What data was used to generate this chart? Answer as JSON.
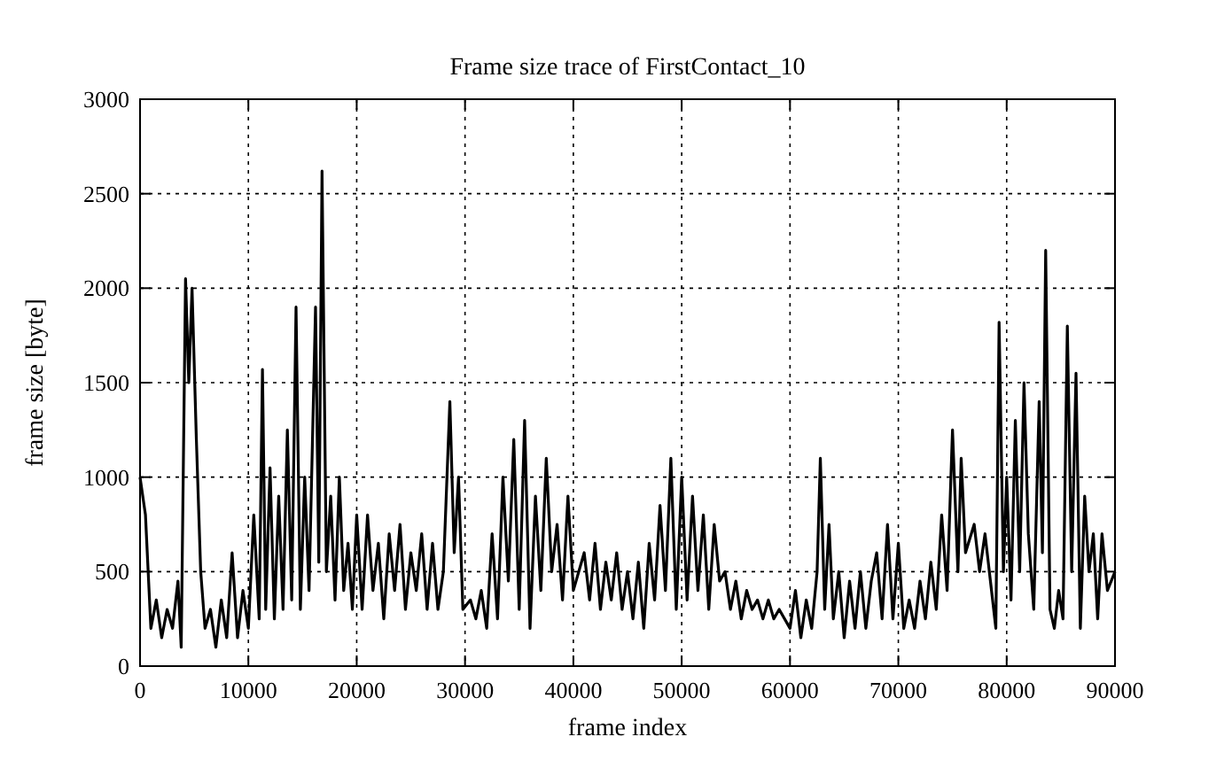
{
  "chart_data": {
    "type": "line",
    "title": "Frame size trace of FirstContact_10",
    "xlabel": "frame index",
    "ylabel": "frame size [byte]",
    "x": [
      0,
      500,
      1000,
      1500,
      2000,
      2500,
      3000,
      3500,
      3800,
      4200,
      4500,
      4800,
      5200,
      5600,
      6000,
      6500,
      7000,
      7500,
      8000,
      8500,
      9000,
      9500,
      10000,
      10500,
      11000,
      11300,
      11600,
      12000,
      12400,
      12800,
      13200,
      13600,
      14000,
      14400,
      14800,
      15200,
      15600,
      16200,
      16500,
      16800,
      17200,
      17600,
      18000,
      18400,
      18800,
      19200,
      19600,
      20000,
      20500,
      21000,
      21500,
      22000,
      22500,
      23000,
      23500,
      24000,
      24500,
      25000,
      25500,
      26000,
      26500,
      27000,
      27500,
      28000,
      28600,
      29000,
      29400,
      29800,
      30500,
      31000,
      31500,
      32000,
      32500,
      33000,
      33500,
      34000,
      34500,
      35000,
      35500,
      36000,
      36500,
      37000,
      37500,
      38000,
      38500,
      39000,
      39500,
      40000,
      41000,
      41500,
      42000,
      42500,
      43000,
      43500,
      44000,
      44500,
      45000,
      45500,
      46000,
      46500,
      47000,
      47500,
      48000,
      48500,
      49000,
      49500,
      50000,
      50500,
      51000,
      51500,
      52000,
      52500,
      53000,
      53500,
      54000,
      54500,
      55000,
      55500,
      56000,
      56500,
      57000,
      57500,
      58000,
      58500,
      59000,
      60000,
      60500,
      61000,
      61500,
      62000,
      62500,
      62800,
      63200,
      63600,
      64000,
      64500,
      65000,
      65500,
      66000,
      66500,
      67000,
      67500,
      68000,
      68500,
      69000,
      69500,
      70000,
      70500,
      71000,
      71500,
      72000,
      72500,
      73000,
      73500,
      74000,
      74500,
      75000,
      75500,
      75800,
      76200,
      77000,
      77500,
      78000,
      78500,
      79000,
      79300,
      79700,
      80000,
      80400,
      80800,
      81200,
      81600,
      82000,
      82500,
      83000,
      83300,
      83600,
      84000,
      84400,
      84800,
      85200,
      85600,
      86000,
      86400,
      86800,
      87200,
      87600,
      88000,
      88400,
      88800,
      89300,
      90000
    ],
    "series": [
      {
        "color": "#000000",
        "values": [
          1000,
          800,
          200,
          350,
          150,
          300,
          200,
          450,
          100,
          2050,
          1500,
          2000,
          1200,
          500,
          200,
          300,
          100,
          350,
          150,
          600,
          150,
          400,
          200,
          800,
          250,
          1570,
          300,
          1050,
          250,
          900,
          300,
          1250,
          350,
          1900,
          300,
          1000,
          400,
          1900,
          550,
          2620,
          500,
          900,
          350,
          1000,
          400,
          650,
          300,
          800,
          300,
          800,
          400,
          650,
          250,
          700,
          400,
          750,
          300,
          600,
          400,
          700,
          300,
          650,
          300,
          500,
          1400,
          600,
          1000,
          300,
          350,
          250,
          400,
          200,
          700,
          250,
          1000,
          450,
          1200,
          300,
          1300,
          200,
          900,
          400,
          1100,
          500,
          750,
          350,
          900,
          400,
          600,
          350,
          650,
          300,
          550,
          350,
          600,
          300,
          500,
          250,
          550,
          200,
          650,
          350,
          850,
          400,
          1100,
          300,
          1000,
          350,
          900,
          400,
          800,
          300,
          750,
          450,
          500,
          300,
          450,
          250,
          400,
          300,
          350,
          250,
          350,
          250,
          300,
          200,
          400,
          150,
          350,
          200,
          500,
          1100,
          300,
          750,
          250,
          500,
          150,
          450,
          200,
          500,
          200,
          450,
          600,
          250,
          750,
          250,
          650,
          200,
          350,
          200,
          450,
          250,
          550,
          300,
          800,
          400,
          1250,
          500,
          1100,
          600,
          750,
          500,
          700,
          450,
          200,
          1820,
          500,
          1000,
          350,
          1300,
          500,
          1500,
          700,
          300,
          1400,
          600,
          2200,
          300,
          200,
          400,
          250,
          1800,
          500,
          1550,
          200,
          900,
          500,
          700,
          250,
          700,
          400,
          500
        ]
      }
    ],
    "xlim": [
      0,
      90000
    ],
    "xticks": [
      0,
      10000,
      20000,
      30000,
      40000,
      50000,
      60000,
      70000,
      80000,
      90000
    ],
    "ylim": [
      0,
      3000
    ],
    "yticks": [
      0,
      500,
      1000,
      1500,
      2000,
      2500,
      3000
    ],
    "grid": true,
    "marker": "none",
    "line_style": "solid"
  }
}
